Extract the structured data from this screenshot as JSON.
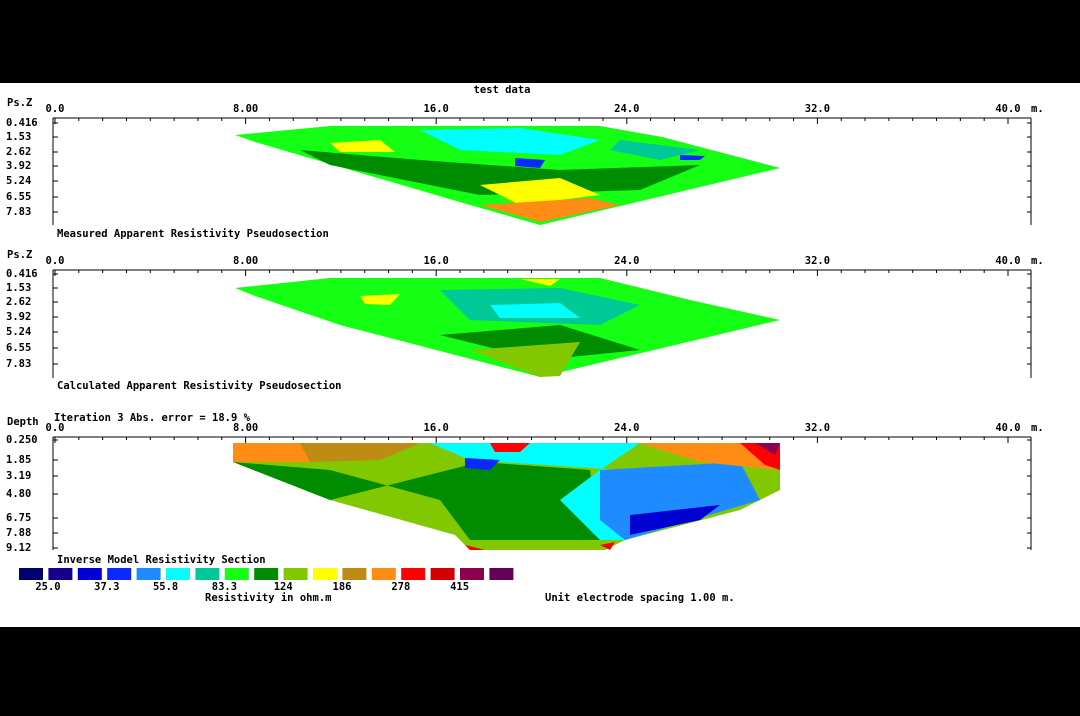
{
  "title": "test data",
  "panels": [
    {
      "y_label": "Ps.Z",
      "x_ticks": [
        "0.0",
        "8.00",
        "16.0",
        "24.0",
        "32.0",
        "40.0"
      ],
      "x_unit": "m.",
      "y_ticks": [
        "0.416",
        "1.53",
        "2.62",
        "3.92",
        "5.24",
        "6.55",
        "7.83"
      ],
      "caption": "Measured Apparent Resistivity Pseudosection"
    },
    {
      "y_label": "Ps.Z",
      "x_ticks": [
        "0.0",
        "8.00",
        "16.0",
        "24.0",
        "32.0",
        "40.0"
      ],
      "x_unit": "m.",
      "y_ticks": [
        "0.416",
        "1.53",
        "2.62",
        "3.92",
        "5.24",
        "6.55",
        "7.83"
      ],
      "caption": "Calculated Apparent Resistivity Pseudosection"
    },
    {
      "y_label": "Depth",
      "header": "Iteration 3 Abs. error = 18.9 %",
      "x_ticks": [
        "0.0",
        "8.00",
        "16.0",
        "24.0",
        "32.0",
        "40.0"
      ],
      "x_unit": "m.",
      "y_ticks": [
        "0.250",
        "1.85",
        "3.19",
        "4.80",
        "6.75",
        "7.88",
        "9.12"
      ],
      "caption": "Inverse Model Resistivity Section"
    }
  ],
  "legend": {
    "colors": [
      "#00006e",
      "#14008c",
      "#0000d2",
      "#0a28ff",
      "#1e8cff",
      "#00ffff",
      "#00c896",
      "#14ff14",
      "#008c00",
      "#82c800",
      "#ffff00",
      "#be8c14",
      "#ff8c14",
      "#ff0000",
      "#d20000",
      "#8c0050",
      "#64005a"
    ],
    "labels": [
      "25.0",
      "37.3",
      "55.8",
      "83.3",
      "124",
      "186",
      "278",
      "415"
    ],
    "unit_label": "Resistivity in ohm.m"
  },
  "spacing_note": "Unit electrode spacing 1.00 m."
}
